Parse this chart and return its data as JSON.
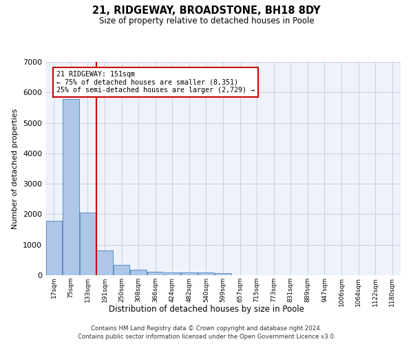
{
  "title": "21, RIDGEWAY, BROADSTONE, BH18 8DY",
  "subtitle": "Size of property relative to detached houses in Poole",
  "xlabel": "Distribution of detached houses by size in Poole",
  "ylabel": "Number of detached properties",
  "bar_color": "#aec6e8",
  "bar_edge_color": "#5a8fc0",
  "categories": [
    "17sqm",
    "75sqm",
    "133sqm",
    "191sqm",
    "250sqm",
    "308sqm",
    "366sqm",
    "424sqm",
    "482sqm",
    "540sqm",
    "599sqm",
    "657sqm",
    "715sqm",
    "773sqm",
    "831sqm",
    "889sqm",
    "947sqm",
    "1006sqm",
    "1064sqm",
    "1122sqm",
    "1180sqm"
  ],
  "values": [
    1780,
    5780,
    2060,
    820,
    340,
    185,
    115,
    100,
    90,
    85,
    70,
    0,
    0,
    0,
    0,
    0,
    0,
    0,
    0,
    0,
    0
  ],
  "ylim": [
    0,
    7000
  ],
  "yticks": [
    0,
    1000,
    2000,
    3000,
    4000,
    5000,
    6000,
    7000
  ],
  "line_x_index": 2.5,
  "annotation_text": "21 RIDGEWAY: 151sqm\n← 75% of detached houses are smaller (8,351)\n25% of semi-detached houses are larger (2,729) →",
  "annotation_box_color": "#ffffff",
  "annotation_box_edge_color": "#cc0000",
  "line_color": "#cc0000",
  "background_color": "#eef2fb",
  "grid_color": "#c8cfe0",
  "footer_line1": "Contains HM Land Registry data © Crown copyright and database right 2024.",
  "footer_line2": "Contains public sector information licensed under the Open Government Licence v3.0."
}
